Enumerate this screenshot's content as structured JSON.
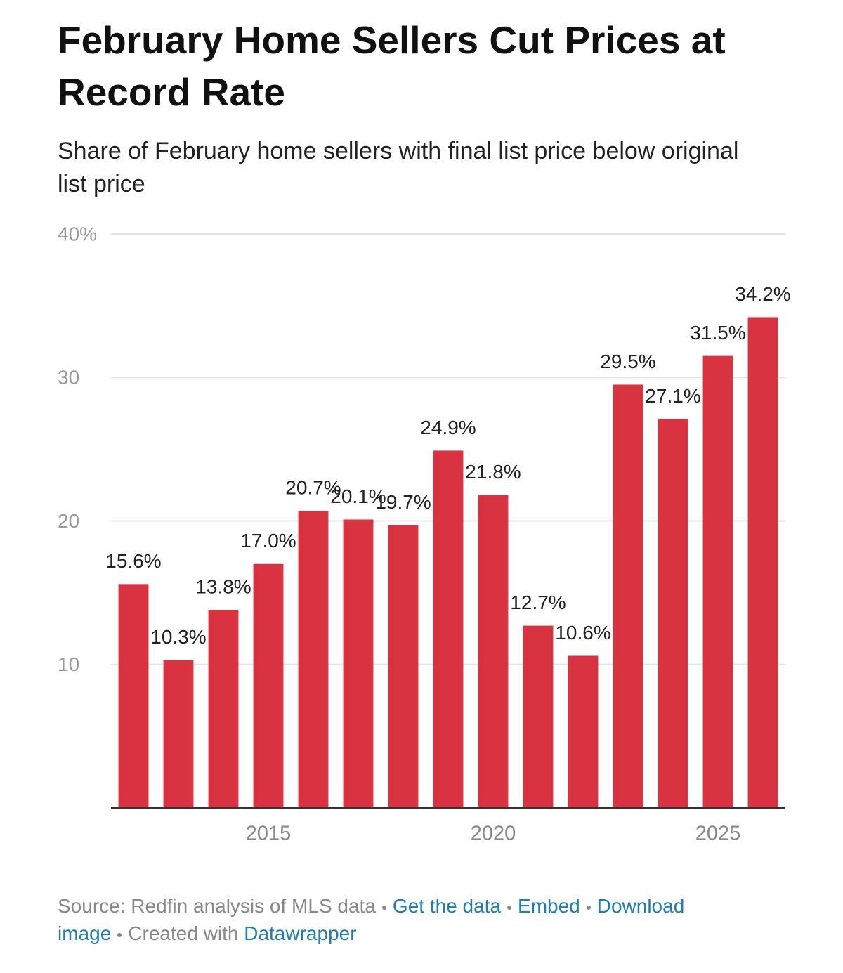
{
  "chart_data": {
    "type": "bar",
    "title": "February Home Sellers Cut Prices at Record Rate",
    "subtitle": "Share of February home sellers with final list price below original list price",
    "x": [
      2012,
      2013,
      2014,
      2015,
      2016,
      2017,
      2018,
      2019,
      2020,
      2021,
      2022,
      2023,
      2024,
      2025,
      2026
    ],
    "values": [
      15.6,
      10.3,
      13.8,
      17.0,
      20.7,
      20.1,
      19.7,
      24.9,
      21.8,
      12.7,
      10.6,
      29.5,
      27.1,
      31.5,
      34.2
    ],
    "value_labels": [
      "15.6%",
      "10.3%",
      "13.8%",
      "17.0%",
      "20.7%",
      "20.1%",
      "19.7%",
      "24.9%",
      "21.8%",
      "12.7%",
      "10.6%",
      "29.5%",
      "27.1%",
      "31.5%",
      "34.2%"
    ],
    "color": "#d93240",
    "xlim": [
      2011.5,
      2026.5
    ],
    "xticks": [
      2015,
      2020,
      2025
    ],
    "ylim": [
      0,
      40
    ],
    "yticks": [
      10,
      20,
      30,
      {
        "value": 40,
        "label": "40%"
      }
    ],
    "grid": true
  },
  "footer": {
    "source": "Source: Redfin analysis of MLS data",
    "links": [
      "Get the data",
      "Embed",
      "Download image"
    ],
    "created_with": "Created with",
    "credit": "Datawrapper"
  }
}
